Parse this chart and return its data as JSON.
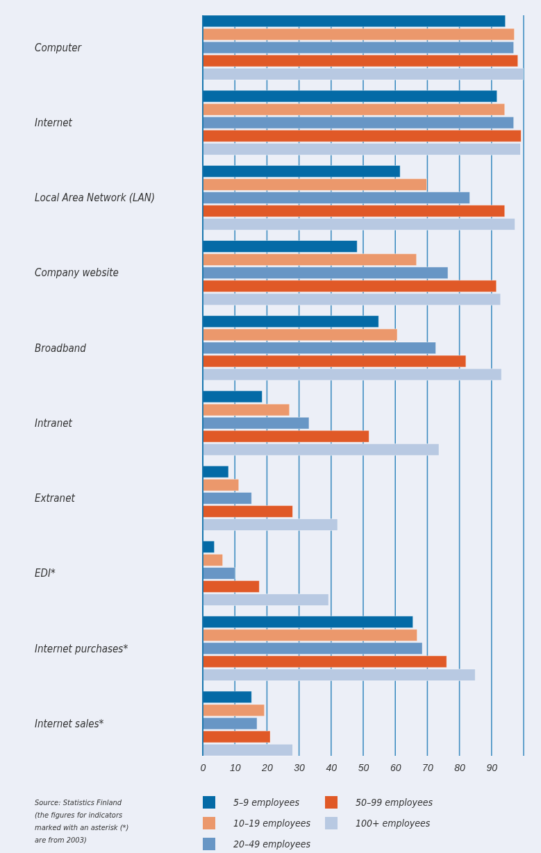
{
  "chart_data": {
    "type": "bar",
    "orientation": "horizontal",
    "categories": [
      "Computer",
      "Internet",
      "Local Area Network (LAN)",
      "Company website",
      "Broadband",
      "Intranet",
      "Extranet",
      "EDI*",
      "Internet purchases*",
      "Internet sales*"
    ],
    "series": [
      {
        "name": "5–9 employees",
        "color": "#046aa6",
        "values": [
          94.3,
          91.7,
          61.5,
          48.1,
          54.8,
          18.5,
          8.0,
          3.6,
          65.5,
          15.2
        ]
      },
      {
        "name": "10–19 employees",
        "color": "#eb986c",
        "values": [
          97.1,
          94.1,
          69.8,
          66.6,
          60.6,
          27.0,
          11.2,
          6.2,
          66.8,
          19.2
        ]
      },
      {
        "name": "20–49 employees",
        "color": "#6896c5",
        "values": [
          96.9,
          96.9,
          83.2,
          76.4,
          72.6,
          33.1,
          15.2,
          10.0,
          68.4,
          16.9
        ]
      },
      {
        "name": "50–99 employees",
        "color": "#e05927",
        "values": [
          98.2,
          99.2,
          94.1,
          91.5,
          82.0,
          51.8,
          28.0,
          17.6,
          76.0,
          21.0
        ]
      },
      {
        "name": "100+ employees",
        "color": "#b8c9e2",
        "values": [
          99.9,
          99.0,
          97.3,
          92.8,
          93.1,
          73.6,
          42.0,
          39.2,
          84.9,
          28.0
        ]
      }
    ],
    "xlim": [
      0,
      100
    ],
    "xticks": [
      0,
      10,
      20,
      30,
      40,
      50,
      60,
      70,
      80,
      90,
      {
        "value": 100,
        "label": null
      }
    ],
    "grid": "x",
    "legend": "bottom",
    "annotations": [
      "Source: Statistics Finland",
      "(the figures for indicators marked with an asterisk (*) are from 2003)"
    ]
  }
}
